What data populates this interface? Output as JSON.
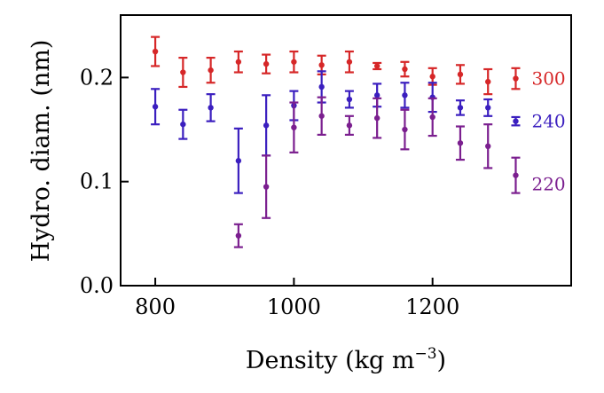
{
  "chart_data": {
    "type": "scatter",
    "title": "",
    "xlabel": "Density (kg m",
    "xlabel_sup": "−3",
    "xlabel_close": ")",
    "ylabel": "Hydro. diam. (nm)",
    "xlim": [
      750,
      1400
    ],
    "ylim": [
      0.0,
      0.26
    ],
    "xticks": [
      800,
      1000,
      1200
    ],
    "xtick_labels": [
      "800",
      "1000",
      "1200"
    ],
    "yticks": [
      0.0,
      0.1,
      0.2
    ],
    "ytick_labels": [
      "0.0",
      "0.1",
      "0.2"
    ],
    "grid": false,
    "legend": "none",
    "series": [
      {
        "name": "300",
        "color": "#d62728",
        "x": [
          800,
          840,
          880,
          920,
          960,
          1000,
          1040,
          1080,
          1120,
          1160,
          1200,
          1240,
          1280,
          1320
        ],
        "y": [
          0.225,
          0.205,
          0.207,
          0.215,
          0.213,
          0.215,
          0.212,
          0.215,
          0.211,
          0.208,
          0.201,
          0.203,
          0.196,
          0.199
        ],
        "err": [
          0.014,
          0.014,
          0.012,
          0.01,
          0.009,
          0.01,
          0.009,
          0.01,
          0.003,
          0.007,
          0.008,
          0.009,
          0.012,
          0.01
        ]
      },
      {
        "name": "240",
        "color": "#3b1fbf",
        "x": [
          800,
          840,
          880,
          920,
          960,
          1000,
          1040,
          1080,
          1120,
          1160,
          1200,
          1240,
          1280,
          1320
        ],
        "y": [
          0.172,
          0.155,
          0.171,
          0.12,
          0.154,
          0.173,
          0.191,
          0.179,
          0.183,
          0.183,
          0.181,
          0.171,
          0.171,
          0.158
        ],
        "err": [
          0.017,
          0.014,
          0.013,
          0.031,
          0.029,
          0.014,
          0.015,
          0.008,
          0.011,
          0.012,
          0.014,
          0.007,
          0.008,
          0.004
        ]
      },
      {
        "name": "220",
        "color": "#7b1f8f",
        "x": [
          920,
          960,
          1000,
          1040,
          1080,
          1120,
          1160,
          1200,
          1240,
          1280,
          1320
        ],
        "y": [
          0.048,
          0.095,
          0.152,
          0.163,
          0.154,
          0.161,
          0.15,
          0.162,
          0.137,
          0.134,
          0.106
        ],
        "err": [
          0.011,
          0.03,
          0.024,
          0.018,
          0.009,
          0.019,
          0.019,
          0.018,
          0.016,
          0.021,
          0.017
        ]
      }
    ]
  }
}
